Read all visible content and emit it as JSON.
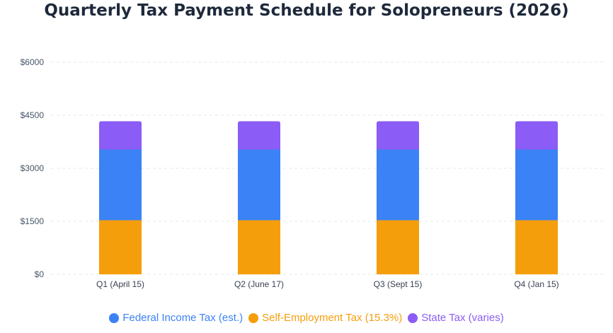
{
  "chart_data": {
    "type": "bar",
    "stacked": true,
    "title": "Quarterly Tax Payment Schedule for Solopreneurs (2026)",
    "xlabel": "",
    "ylabel": "",
    "categories": [
      "Q1 (April 15)",
      "Q2 (June 17)",
      "Q3 (Sept 15)",
      "Q4 (Jan 15)"
    ],
    "series": [
      {
        "name": "Federal Income Tax (est.)",
        "color": "#3b82f6",
        "values": [
          2000,
          2000,
          2000,
          2000
        ]
      },
      {
        "name": "Self-Employment Tax (15.3%)",
        "color": "#f59e0b",
        "values": [
          1530,
          1530,
          1530,
          1530
        ]
      },
      {
        "name": "State Tax (varies)",
        "color": "#8b5cf6",
        "values": [
          800,
          800,
          800,
          800
        ]
      }
    ],
    "stack_order": [
      1,
      0,
      2
    ],
    "ylim": [
      0,
      6000
    ],
    "yticks": [
      0,
      1500,
      3000,
      4500,
      6000
    ],
    "ytick_labels": [
      "$0",
      "$1500",
      "$3000",
      "$4500",
      "$6000"
    ],
    "grid": true,
    "legend_position": "bottom"
  }
}
